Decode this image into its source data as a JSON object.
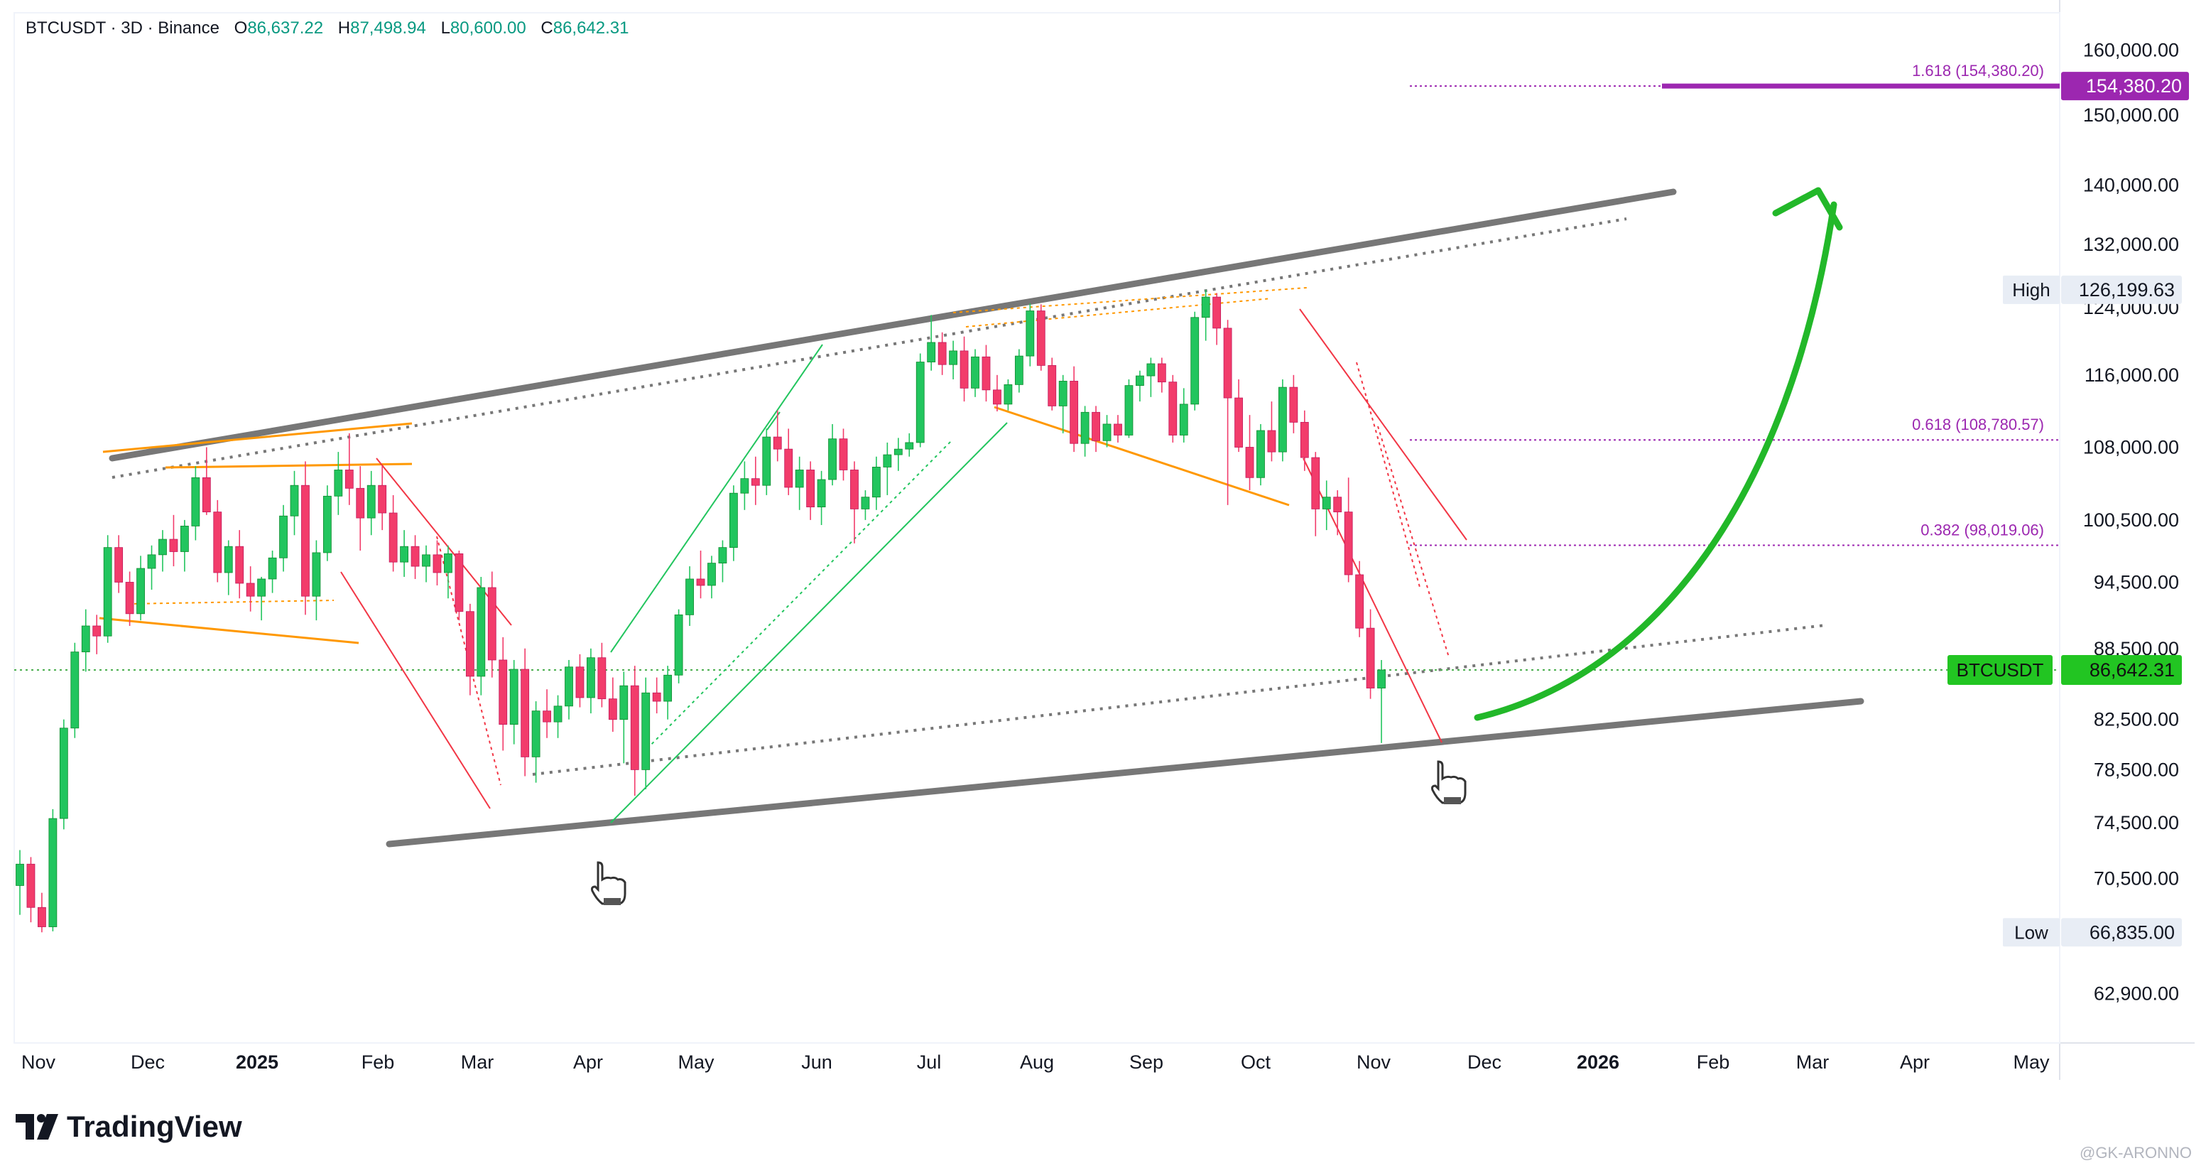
{
  "header": {
    "symbol": "BTCUSDT · 3D · Binance",
    "open_label": "O",
    "open": "86,637.22",
    "high_label": "H",
    "high": "87,498.94",
    "low_label": "L",
    "low": "80,600.00",
    "close_label": "C",
    "close": "86,642.31"
  },
  "colors": {
    "up": "#22c55e",
    "down": "#f23c6b",
    "channel": "#777777",
    "fib": "#9c27b0",
    "arrow": "#22b829",
    "orange": "#ff9800",
    "price_tag": "#22c522"
  },
  "branding": {
    "logo_text": "TradingView",
    "watermark": "@GK-ARONNO"
  },
  "chart_data": {
    "type": "candlestick",
    "y_axis": {
      "scale": "log",
      "ticks": [
        "160,000.00",
        "150,000.00",
        "140,000.00",
        "132,000.00",
        "124,000.00",
        "116,000.00",
        "108,000.00",
        "100,500.00",
        "94,500.00",
        "88,500.00",
        "82,500.00",
        "78,500.00",
        "74,500.00",
        "70,500.00",
        "62,900.00"
      ],
      "tick_values": [
        160000,
        150000,
        140000,
        132000,
        124000,
        116000,
        108000,
        100500,
        94500,
        88500,
        82500,
        78500,
        74500,
        70500,
        62900
      ]
    },
    "x_axis": {
      "labels": [
        "Nov",
        "Dec",
        "2025",
        "Feb",
        "Mar",
        "Apr",
        "May",
        "Jun",
        "Jul",
        "Aug",
        "Sep",
        "Oct",
        "Nov",
        "Dec",
        "2026",
        "Feb",
        "Mar",
        "Apr",
        "May"
      ],
      "bold": [
        "2025",
        "2026"
      ]
    },
    "markers": {
      "high_label": "High",
      "high_value": "126,199.63",
      "low_label": "Low",
      "low_value": "66,835.00",
      "last_label": "BTCUSDT",
      "last_value": "86,642.31",
      "target_value": "154,380.20"
    },
    "fib_levels": [
      {
        "label": "1.618 (154,380.20)",
        "value": 154380.2
      },
      {
        "label": "0.618 (108,780.57)",
        "value": 108780.57
      },
      {
        "label": "0.382 (98,019.06)",
        "value": 98019.06
      }
    ],
    "series": [
      {
        "ohlc": [
          [
            70000,
            72500,
            68000,
            71500
          ],
          [
            71500,
            72000,
            67500,
            68500
          ],
          [
            68500,
            69500,
            66835,
            67200
          ],
          [
            67200,
            75500,
            66900,
            74800
          ],
          [
            74800,
            82500,
            74000,
            81800
          ],
          [
            81800,
            89000,
            81000,
            88200
          ],
          [
            88200,
            92000,
            86500,
            90500
          ],
          [
            90500,
            91500,
            88000,
            89600
          ],
          [
            89600,
            99000,
            89000,
            97800
          ],
          [
            97800,
            99000,
            93500,
            94500
          ],
          [
            94500,
            95500,
            90500,
            91600
          ],
          [
            91600,
            97000,
            91000,
            95800
          ],
          [
            95800,
            98000,
            93800,
            97100
          ],
          [
            97100,
            99500,
            95500,
            98600
          ],
          [
            98600,
            101000,
            96000,
            97400
          ],
          [
            97400,
            100500,
            95500,
            99900
          ],
          [
            99900,
            106000,
            98500,
            104800
          ],
          [
            104800,
            108000,
            101000,
            101300
          ],
          [
            101300,
            102500,
            94500,
            95400
          ],
          [
            95400,
            98500,
            93300,
            97900
          ],
          [
            97900,
            99500,
            93000,
            94400
          ],
          [
            94400,
            96000,
            91800,
            93200
          ],
          [
            93200,
            95000,
            91000,
            94800
          ],
          [
            94800,
            97500,
            93500,
            96800
          ],
          [
            96800,
            102000,
            95500,
            100900
          ],
          [
            100900,
            105500,
            99000,
            104000
          ],
          [
            104000,
            106500,
            91500,
            93200
          ],
          [
            93200,
            98500,
            91000,
            97300
          ],
          [
            97300,
            104000,
            96500,
            102900
          ],
          [
            102900,
            107500,
            101000,
            105600
          ],
          [
            105600,
            109500,
            102000,
            103700
          ],
          [
            103700,
            106000,
            97500,
            100700
          ],
          [
            100700,
            105500,
            99000,
            104000
          ],
          [
            104000,
            106000,
            99500,
            101200
          ],
          [
            101200,
            103000,
            95500,
            96400
          ],
          [
            96400,
            99500,
            95000,
            97900
          ],
          [
            97900,
            99000,
            94800,
            96000
          ],
          [
            96000,
            98000,
            94500,
            97100
          ],
          [
            97100,
            98500,
            94200,
            95400
          ],
          [
            95400,
            98000,
            93000,
            97200
          ],
          [
            97200,
            97500,
            91000,
            91800
          ],
          [
            91800,
            92500,
            84500,
            86100
          ],
          [
            86100,
            95000,
            84500,
            94000
          ],
          [
            94000,
            95500,
            86000,
            87500
          ],
          [
            87500,
            89500,
            80000,
            82100
          ],
          [
            82100,
            87500,
            80500,
            86700
          ],
          [
            86700,
            88500,
            78000,
            79500
          ],
          [
            79500,
            84000,
            77500,
            83200
          ],
          [
            83200,
            85000,
            81000,
            82300
          ],
          [
            82300,
            84500,
            81000,
            83600
          ],
          [
            83600,
            87500,
            82500,
            86900
          ],
          [
            86900,
            88000,
            83500,
            84300
          ],
          [
            84300,
            88500,
            83000,
            87700
          ],
          [
            87700,
            89000,
            83500,
            84200
          ],
          [
            84200,
            86000,
            81500,
            82500
          ],
          [
            82500,
            86500,
            79000,
            85300
          ],
          [
            85300,
            87000,
            76500,
            78500
          ],
          [
            78500,
            86000,
            77000,
            84700
          ],
          [
            84700,
            86000,
            83000,
            84000
          ],
          [
            84000,
            87000,
            82500,
            86200
          ],
          [
            86200,
            92000,
            85500,
            91500
          ],
          [
            91500,
            96000,
            90500,
            94800
          ],
          [
            94800,
            97500,
            93000,
            94200
          ],
          [
            94200,
            97000,
            93000,
            96300
          ],
          [
            96300,
            98500,
            94500,
            97800
          ],
          [
            97800,
            104000,
            96500,
            103200
          ],
          [
            103200,
            106500,
            101500,
            104700
          ],
          [
            104700,
            107000,
            102000,
            104000
          ],
          [
            104000,
            110000,
            103000,
            109100
          ],
          [
            109100,
            112000,
            106500,
            107800
          ],
          [
            107800,
            110000,
            103000,
            103800
          ],
          [
            103800,
            107000,
            101500,
            105600
          ],
          [
            105600,
            106500,
            100500,
            101800
          ],
          [
            101800,
            105500,
            100000,
            104600
          ],
          [
            104600,
            110500,
            104000,
            108900
          ],
          [
            108900,
            110000,
            104500,
            105600
          ],
          [
            105600,
            106500,
            98200,
            101600
          ],
          [
            101600,
            103500,
            100500,
            102800
          ],
          [
            102800,
            107000,
            101500,
            105900
          ],
          [
            105900,
            108500,
            103000,
            107200
          ],
          [
            107200,
            109000,
            105500,
            107800
          ],
          [
            107800,
            109500,
            107000,
            108500
          ],
          [
            108500,
            118500,
            108000,
            117500
          ],
          [
            117500,
            123100,
            116500,
            119800
          ],
          [
            119800,
            121000,
            116000,
            117200
          ],
          [
            117200,
            120000,
            115500,
            118800
          ],
          [
            118800,
            120500,
            113000,
            114500
          ],
          [
            114500,
            119000,
            113500,
            118100
          ],
          [
            118100,
            119500,
            113000,
            114300
          ],
          [
            114300,
            116000,
            111900,
            112700
          ],
          [
            112700,
            115500,
            112000,
            114900
          ],
          [
            114900,
            119000,
            114000,
            118200
          ],
          [
            118200,
            124500,
            117000,
            123600
          ],
          [
            123600,
            124400,
            116500,
            117100
          ],
          [
            117100,
            118000,
            112000,
            112500
          ],
          [
            112500,
            116000,
            109500,
            115300
          ],
          [
            115300,
            117000,
            107500,
            108400
          ],
          [
            108400,
            112500,
            107000,
            111800
          ],
          [
            111800,
            112500,
            107500,
            108700
          ],
          [
            108700,
            111500,
            108000,
            110500
          ],
          [
            110500,
            111500,
            108500,
            109300
          ],
          [
            109300,
            115500,
            109000,
            114800
          ],
          [
            114800,
            116500,
            113000,
            115900
          ],
          [
            115900,
            118000,
            113500,
            117300
          ],
          [
            117300,
            118000,
            114000,
            115200
          ],
          [
            115200,
            116000,
            108500,
            109300
          ],
          [
            109300,
            114500,
            108500,
            112700
          ],
          [
            112700,
            123500,
            112000,
            122800
          ],
          [
            122800,
            126199.63,
            120000,
            125300
          ],
          [
            125300,
            125800,
            119500,
            121500
          ],
          [
            121500,
            122500,
            102000,
            113400
          ],
          [
            113400,
            115500,
            107500,
            108000
          ],
          [
            108000,
            111500,
            103500,
            104800
          ],
          [
            104800,
            110500,
            104000,
            109800
          ],
          [
            109800,
            113000,
            106500,
            107500
          ],
          [
            107500,
            115500,
            106500,
            114600
          ],
          [
            114600,
            116000,
            109500,
            110700
          ],
          [
            110700,
            112000,
            105500,
            106900
          ],
          [
            106900,
            107500,
            98900,
            101600
          ],
          [
            101600,
            104500,
            99500,
            102800
          ],
          [
            102800,
            103500,
            99000,
            101300
          ],
          [
            101300,
            104800,
            94500,
            95200
          ],
          [
            95200,
            96500,
            89500,
            90300
          ],
          [
            90300,
            92000,
            84200,
            85100
          ],
          [
            85100,
            87498.94,
            80600,
            86642.31
          ]
        ]
      }
    ]
  }
}
